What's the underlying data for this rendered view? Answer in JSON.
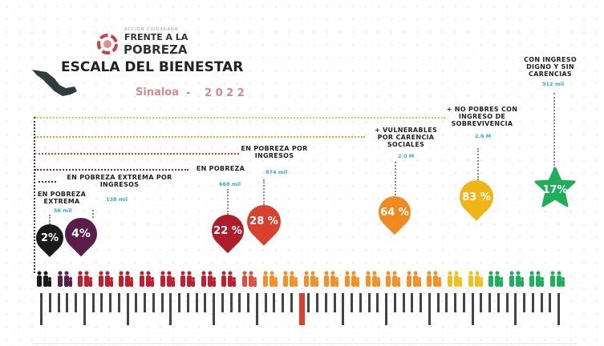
{
  "header": {
    "org_small": "ACCIÓN CIUDADANA",
    "org_line1": "FRENTE A LA",
    "org_line2": "POBREZA",
    "title": "ESCALA DEL BIENESTAR",
    "state": "Sinaloa",
    "separator": "-",
    "year": "2 0 2 2"
  },
  "categories": [
    {
      "label": "EN POBREZA EXTREMA",
      "value": "56 mil",
      "percent": "2%",
      "color": "#1a1a1a"
    },
    {
      "label": "EN POBREZA EXTREMA POR INGRESOS",
      "value": "138 mil",
      "percent": "4%",
      "color": "#5a1e4a"
    },
    {
      "label": "EN POBREZA",
      "value": "668 mil",
      "percent": "22 %",
      "color": "#b01c2a"
    },
    {
      "label": "EN POBREZA POR INGRESOS",
      "value": "874 mil",
      "percent": "28 %",
      "color": "#d9402e"
    },
    {
      "label": "+ VULNERABLES POR CARENCIA SOCIALES",
      "value": "2.0 M",
      "percent": "64 %",
      "color": "#f18a1e"
    },
    {
      "label": "+ NO POBRES CON INGRESO DE SOBREVIVENCIA",
      "value": "2.6 M",
      "percent": "83 %",
      "color": "#f0b416"
    },
    {
      "label": "CON INGRESO DIGNO Y SIN CARENCIAS",
      "value": "512 mil",
      "percent": "17%",
      "color": "#1fae5c"
    }
  ]
}
